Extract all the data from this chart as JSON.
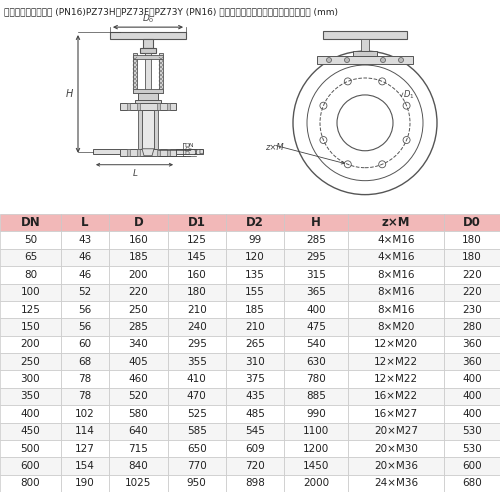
{
  "title": "产品外形及结构尺寸 (PN16)PZ73H、PZ73F、PZ73Y (PN16) 型刀型闸阀（刀闸阀）外形及结构尺寸 (mm)",
  "header": [
    "DN",
    "L",
    "D",
    "D1",
    "D2",
    "H",
    "z×M",
    "D0"
  ],
  "header_bg": "#f2b8b8",
  "rows": [
    [
      50,
      43,
      160,
      125,
      99,
      285,
      "4×M16",
      180
    ],
    [
      65,
      46,
      185,
      145,
      120,
      295,
      "4×M16",
      180
    ],
    [
      80,
      46,
      200,
      160,
      135,
      315,
      "8×M16",
      220
    ],
    [
      100,
      52,
      220,
      180,
      155,
      365,
      "8×M16",
      220
    ],
    [
      125,
      56,
      250,
      210,
      185,
      400,
      "8×M16",
      230
    ],
    [
      150,
      56,
      285,
      240,
      210,
      475,
      "8×M20",
      280
    ],
    [
      200,
      60,
      340,
      295,
      265,
      540,
      "12×M20",
      360
    ],
    [
      250,
      68,
      405,
      355,
      310,
      630,
      "12×M22",
      360
    ],
    [
      300,
      78,
      460,
      410,
      375,
      780,
      "12×M22",
      400
    ],
    [
      350,
      78,
      520,
      470,
      435,
      885,
      "16×M22",
      400
    ],
    [
      400,
      102,
      580,
      525,
      485,
      990,
      "16×M27",
      400
    ],
    [
      450,
      114,
      640,
      585,
      545,
      1100,
      "20×M27",
      530
    ],
    [
      500,
      127,
      715,
      650,
      609,
      1200,
      "20×M30",
      530
    ],
    [
      600,
      154,
      840,
      770,
      720,
      1450,
      "20×M36",
      600
    ],
    [
      800,
      190,
      1025,
      950,
      898,
      2000,
      "24×M36",
      680
    ]
  ],
  "row_colors": [
    "#ffffff",
    "#f5f5f5"
  ],
  "border_color": "#c8c8c8",
  "title_fontsize": 6.5,
  "table_fontsize": 7.5,
  "header_fontsize": 8.5,
  "fig_bg": "#ffffff",
  "drawing_bg": "#ffffff",
  "line_color": "#555555",
  "dim_color": "#444444"
}
